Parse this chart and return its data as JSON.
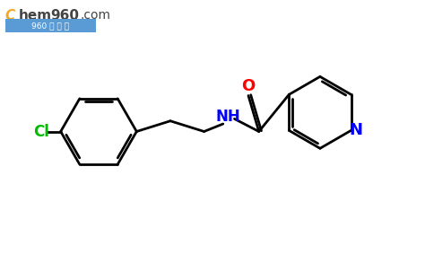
{
  "background_color": "#ffffff",
  "bond_color": "#000000",
  "cl_color": "#00bb00",
  "nitrogen_color": "#0000ff",
  "oxygen_color": "#ff0000",
  "line_width": 2.0,
  "figsize": [
    4.74,
    2.93
  ],
  "dpi": 100,
  "xlim": [
    0,
    10
  ],
  "ylim": [
    0,
    6.2
  ]
}
